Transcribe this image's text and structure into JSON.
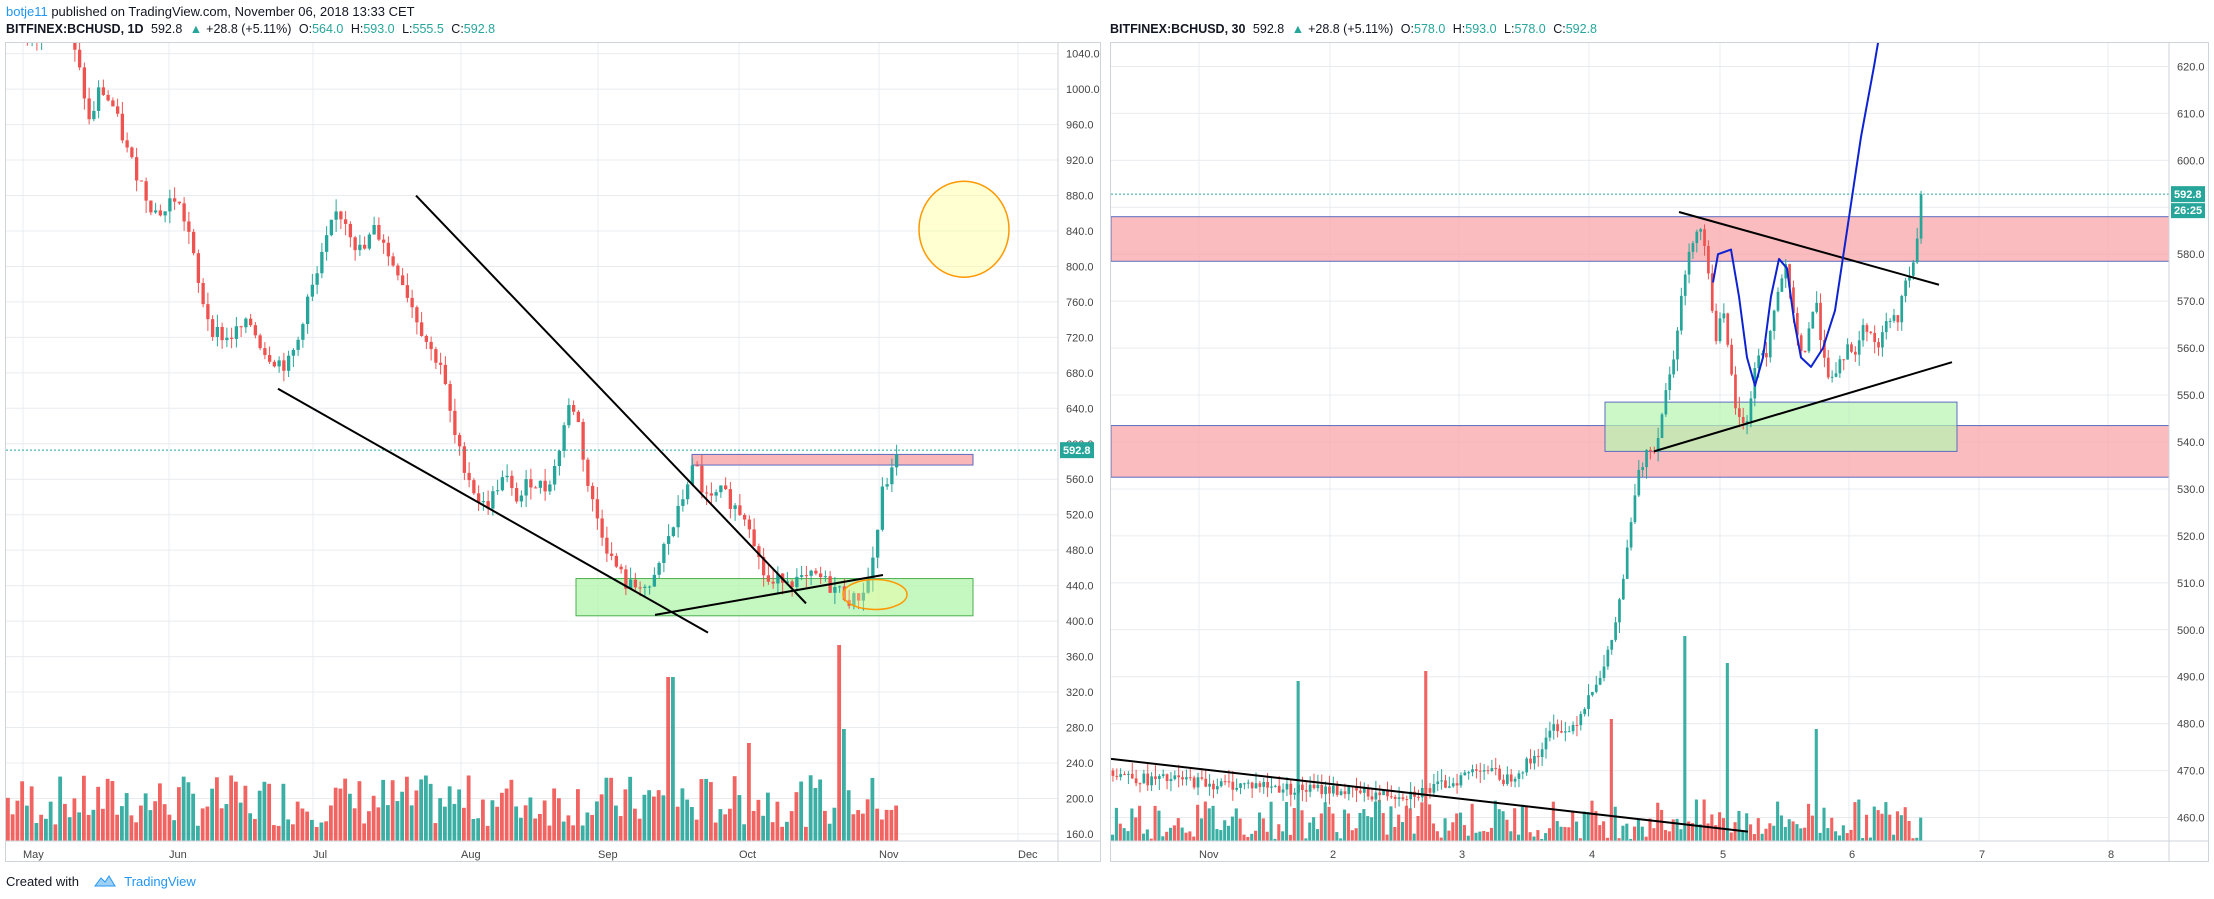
{
  "header": {
    "user": "botje11",
    "published": "published on TradingView.com, November 06, 2018 13:33 CET"
  },
  "panels": [
    {
      "symbol": "BITFINEX:BCHUSD, 1D",
      "last": "592.8",
      "change": "+28.8 (+5.11%)",
      "ohlc": {
        "O": "564.0",
        "H": "593.0",
        "L": "555.5",
        "C": "592.8"
      },
      "price_tag": "592.8",
      "chart_data": {
        "type": "candlestick",
        "title": "BITFINEX:BCHUSD, 1D",
        "yaxis_ticks": [
          1040,
          1000,
          960,
          920,
          880,
          840,
          800,
          760,
          720,
          680,
          640,
          600,
          560,
          520,
          480,
          440,
          400,
          360,
          320,
          280,
          240,
          200,
          160
        ],
        "xaxis_ticks": [
          "May",
          "Jun",
          "Jul",
          "Aug",
          "Sep",
          "Oct",
          "Nov",
          "Dec"
        ],
        "ylim": [
          152,
          1052
        ],
        "last_price": 592.8,
        "close_path": [
          [
            0,
            1085
          ],
          [
            6,
            1072
          ],
          [
            10,
            1048
          ],
          [
            15,
            1062
          ],
          [
            20,
            1090
          ],
          [
            26,
            1055
          ],
          [
            30,
            1010
          ],
          [
            33,
            960
          ],
          [
            37,
            1002
          ],
          [
            42,
            980
          ],
          [
            48,
            925
          ],
          [
            52,
            900
          ],
          [
            55,
            878
          ],
          [
            58,
            862
          ],
          [
            62,
            862
          ],
          [
            65,
            880
          ],
          [
            68,
            865
          ],
          [
            71,
            840
          ],
          [
            75,
            775
          ],
          [
            80,
            730
          ],
          [
            86,
            718
          ],
          [
            90,
            728
          ],
          [
            95,
            735
          ],
          [
            100,
            705
          ],
          [
            104,
            695
          ],
          [
            109,
            688
          ],
          [
            113,
            715
          ],
          [
            116,
            758
          ],
          [
            120,
            785
          ],
          [
            124,
            828
          ],
          [
            128,
            862
          ],
          [
            132,
            850
          ],
          [
            135,
            825
          ],
          [
            138,
            815
          ],
          [
            142,
            842
          ],
          [
            146,
            830
          ],
          [
            148,
            808
          ],
          [
            151,
            800
          ],
          [
            155,
            770
          ],
          [
            159,
            740
          ],
          [
            164,
            705
          ],
          [
            168,
            690
          ],
          [
            171,
            640
          ],
          [
            174,
            598
          ],
          [
            178,
            568
          ],
          [
            181,
            545
          ],
          [
            184,
            530
          ],
          [
            187,
            535
          ],
          [
            190,
            555
          ],
          [
            193,
            562
          ],
          [
            196,
            538
          ],
          [
            199,
            542
          ],
          [
            202,
            560
          ],
          [
            205,
            555
          ],
          [
            208,
            550
          ],
          [
            212,
            575
          ],
          [
            215,
            618
          ],
          [
            218,
            650
          ],
          [
            221,
            620
          ],
          [
            224,
            558
          ],
          [
            227,
            525
          ],
          [
            230,
            500
          ],
          [
            233,
            472
          ],
          [
            236,
            458
          ],
          [
            239,
            442
          ],
          [
            242,
            438
          ],
          [
            245,
            445
          ],
          [
            248,
            430
          ],
          [
            251,
            455
          ],
          [
            254,
            488
          ],
          [
            257,
            505
          ],
          [
            260,
            530
          ],
          [
            263,
            562
          ],
          [
            266,
            575
          ],
          [
            269,
            540
          ],
          [
            272,
            535
          ],
          [
            275,
            545
          ],
          [
            278,
            540
          ],
          [
            281,
            528
          ],
          [
            284,
            522
          ],
          [
            287,
            510
          ],
          [
            290,
            470
          ],
          [
            293,
            445
          ],
          [
            296,
            440
          ],
          [
            299,
            452
          ],
          [
            302,
            448
          ],
          [
            305,
            445
          ],
          [
            308,
            445
          ],
          [
            311,
            450
          ],
          [
            314,
            448
          ],
          [
            317,
            440
          ],
          [
            320,
            436
          ],
          [
            323,
            430
          ],
          [
            326,
            422
          ],
          [
            329,
            430
          ],
          [
            332,
            445
          ],
          [
            335,
            488
          ],
          [
            338,
            555
          ],
          [
            341,
            564
          ],
          [
            343,
            592.8
          ]
        ],
        "volume_note": "relative volume bars",
        "annotations": [
          "descending wedge lines",
          "support zone 410-450",
          "resistance zone 576-588",
          "circle highlight"
        ]
      }
    },
    {
      "symbol": "BITFINEX:BCHUSD, 30",
      "last": "592.8",
      "change": "+28.8 (+5.11%)",
      "ohlc": {
        "O": "578.0",
        "H": "593.0",
        "L": "578.0",
        "C": "592.8"
      },
      "price_tag": "592.8",
      "time_tag": "26:25",
      "chart_data": {
        "type": "candlestick",
        "title": "BITFINEX:BCHUSD, 30",
        "yaxis_ticks": [
          620,
          610,
          600,
          590,
          580,
          570,
          560,
          550,
          540,
          530,
          520,
          510,
          500,
          490,
          480,
          470,
          460
        ],
        "xaxis_ticks": [
          "Nov",
          "2",
          "3",
          "4",
          "5",
          "6",
          "7",
          "8"
        ],
        "ylim": [
          455,
          625
        ],
        "last_price": 592.8,
        "close_path": [
          [
            0.0,
            470
          ],
          [
            0.3,
            468
          ],
          [
            0.6,
            468
          ],
          [
            0.9,
            467
          ],
          [
            1.2,
            467
          ],
          [
            1.5,
            466
          ],
          [
            1.8,
            466
          ],
          [
            2.1,
            465
          ],
          [
            2.4,
            465
          ],
          [
            2.6,
            466
          ],
          [
            2.8,
            468
          ],
          [
            3.0,
            471
          ],
          [
            3.2,
            468
          ],
          [
            3.4,
            472
          ],
          [
            3.5,
            475
          ],
          [
            3.6,
            480
          ],
          [
            3.7,
            478
          ],
          [
            3.8,
            482
          ],
          [
            3.9,
            488
          ],
          [
            4.0,
            492
          ],
          [
            4.1,
            503
          ],
          [
            4.2,
            520
          ],
          [
            4.25,
            531
          ],
          [
            4.3,
            535
          ],
          [
            4.35,
            540
          ],
          [
            4.4,
            538
          ],
          [
            4.45,
            545
          ],
          [
            4.5,
            552
          ],
          [
            4.55,
            558
          ],
          [
            4.6,
            568
          ],
          [
            4.65,
            576
          ],
          [
            4.7,
            582
          ],
          [
            4.75,
            587
          ],
          [
            4.8,
            583
          ],
          [
            4.85,
            572
          ],
          [
            4.9,
            562
          ],
          [
            4.95,
            568
          ],
          [
            5.0,
            558
          ],
          [
            5.05,
            548
          ],
          [
            5.1,
            543
          ],
          [
            5.15,
            545
          ],
          [
            5.2,
            554
          ],
          [
            5.25,
            560
          ],
          [
            5.3,
            558
          ],
          [
            5.35,
            566
          ],
          [
            5.4,
            572
          ],
          [
            5.45,
            578
          ],
          [
            5.5,
            570
          ],
          [
            5.55,
            562
          ],
          [
            5.6,
            558
          ],
          [
            5.65,
            565
          ],
          [
            5.7,
            570
          ],
          [
            5.75,
            561
          ],
          [
            5.8,
            555
          ],
          [
            5.85,
            552
          ],
          [
            5.9,
            557
          ],
          [
            5.95,
            560
          ],
          [
            6.0,
            558
          ],
          [
            6.05,
            562
          ],
          [
            6.1,
            565
          ],
          [
            6.15,
            563
          ],
          [
            6.2,
            560
          ],
          [
            6.25,
            564
          ],
          [
            6.3,
            567
          ],
          [
            6.35,
            565
          ],
          [
            6.4,
            572
          ],
          [
            6.45,
            575
          ],
          [
            6.5,
            578
          ],
          [
            6.55,
            592.8
          ]
        ],
        "annotations": [
          "resistance zone 578-588",
          "support zone 530-544",
          "accumulation box 538-549",
          "trend lines",
          "projection curve"
        ]
      }
    }
  ],
  "footer": {
    "created": "Created with",
    "brand": "TradingView"
  },
  "colors": {
    "up": "#26a69a",
    "down": "#ef5350",
    "zone_red": "#f8a5a8",
    "zone_green": "#b7f5b0",
    "grid": "#e9ecef"
  }
}
